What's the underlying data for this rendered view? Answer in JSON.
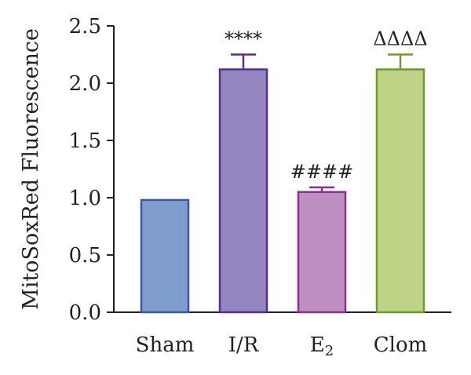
{
  "chart_data": {
    "type": "bar",
    "categories": [
      "Sham",
      "I/R",
      "E2",
      "Clom"
    ],
    "category_display": [
      {
        "main": "Sham",
        "sub": ""
      },
      {
        "main": "I/R",
        "sub": ""
      },
      {
        "main": "E",
        "sub": "2"
      },
      {
        "main": "Clom",
        "sub": ""
      }
    ],
    "values": [
      0.98,
      2.12,
      1.05,
      2.12
    ],
    "error": [
      0.0,
      0.13,
      0.04,
      0.13
    ],
    "annotations": [
      "",
      "****",
      "####",
      "ΔΔΔΔ"
    ],
    "colors": {
      "fill": [
        "#7f9dcc",
        "#9385bf",
        "#bf8fc2",
        "#bdd486"
      ],
      "stroke": [
        "#3f55a3",
        "#5a2d8a",
        "#8a2f8f",
        "#6e9a2e"
      ]
    },
    "ylabel": "MitoSoxRed Fluorescence",
    "xlabel": "",
    "title": "",
    "ylim": [
      0,
      2.5
    ],
    "yticks": [
      "0.0",
      "0.5",
      "1.0",
      "1.5",
      "2.0",
      "2.5"
    ]
  }
}
